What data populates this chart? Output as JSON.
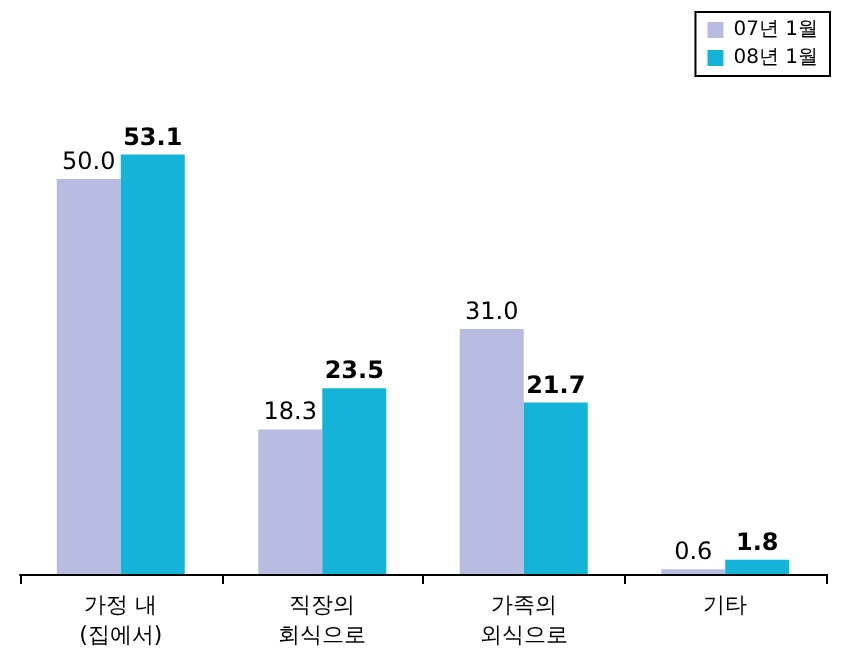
{
  "chart_data": {
    "type": "bar",
    "categories": [
      "가정 내\n(집에서)",
      "직장의\n회식으로",
      "가족의\n외식으로",
      "기타"
    ],
    "series": [
      {
        "name": "07년 1월",
        "color": "#b8bce0",
        "values": [
          50.0,
          18.3,
          31.0,
          0.6
        ],
        "value_labels": [
          "50.0",
          "18.3",
          "31.0",
          "0.6"
        ]
      },
      {
        "name": "08년 1월",
        "color": "#14b4d8",
        "values": [
          53.1,
          23.5,
          21.7,
          1.8
        ],
        "value_labels": [
          "53.1",
          "23.5",
          "21.7",
          "1.8"
        ]
      }
    ],
    "legend": "top right"
  }
}
